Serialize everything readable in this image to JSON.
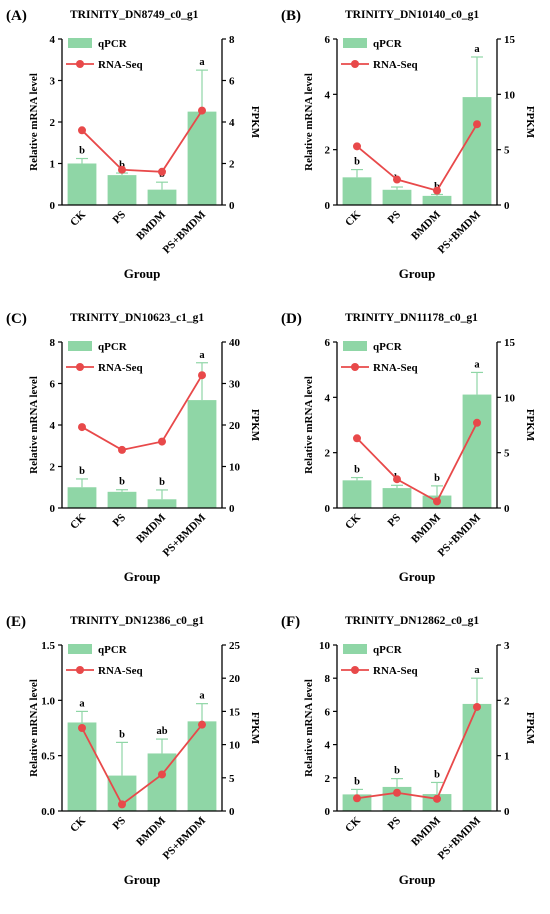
{
  "colors": {
    "bar": "#8fd6a6",
    "error": "#8fd6a6",
    "line": "#e8494a",
    "axis": "#000000"
  },
  "chart_data": [
    {
      "type": "bar",
      "panel_label": "(A)",
      "title": "TRINITY_DN8749_c0_g1",
      "xlabel": "Group",
      "ylabel": "Relative mRNA level",
      "y2label": "FPKM",
      "categories": [
        "CK",
        "PS",
        "BMDM",
        "PS+BMDM"
      ],
      "ylim": [
        0,
        4
      ],
      "yticks": [
        "0",
        "1",
        "2",
        "3",
        "4"
      ],
      "y2lim": [
        0,
        8
      ],
      "y2ticks": [
        "0",
        "2",
        "4",
        "6",
        "8"
      ],
      "legend": [
        "qPCR",
        "RNA-Seq"
      ],
      "series": [
        {
          "name": "qPCR",
          "type": "bar",
          "values": [
            1.0,
            0.72,
            0.37,
            2.25
          ],
          "errors": [
            0.12,
            0.05,
            0.18,
            1.0
          ],
          "labels": [
            "b",
            "b",
            "b",
            "a"
          ]
        },
        {
          "name": "RNA-Seq",
          "type": "line",
          "axis": "right",
          "values": [
            3.6,
            1.7,
            1.6,
            4.55
          ]
        }
      ]
    },
    {
      "type": "bar",
      "panel_label": "(B)",
      "title": "TRINITY_DN10140_c0_g1",
      "xlabel": "Group",
      "ylabel": "Relative mRNA level",
      "y2label": "FPKM",
      "categories": [
        "CK",
        "PS",
        "BMDM",
        "PS+BMDM"
      ],
      "ylim": [
        0,
        6
      ],
      "yticks": [
        "0",
        "2",
        "4",
        "6"
      ],
      "y2lim": [
        0,
        15
      ],
      "y2ticks": [
        "0",
        "5",
        "10",
        "15"
      ],
      "legend": [
        "qPCR",
        "RNA-Seq"
      ],
      "series": [
        {
          "name": "qPCR",
          "type": "bar",
          "values": [
            1.0,
            0.55,
            0.33,
            3.9
          ],
          "errors": [
            0.28,
            0.1,
            0.05,
            1.45
          ],
          "labels": [
            "b",
            "b",
            "b",
            "a"
          ]
        },
        {
          "name": "RNA-Seq",
          "type": "line",
          "axis": "right",
          "values": [
            5.3,
            2.3,
            1.3,
            7.3
          ]
        }
      ]
    },
    {
      "type": "bar",
      "panel_label": "(C)",
      "title": "TRINITY_DN10623_c1_g1",
      "xlabel": "Group",
      "ylabel": "Relative mRNA level",
      "y2label": "FPKM",
      "categories": [
        "CK",
        "PS",
        "BMDM",
        "PS+BMDM"
      ],
      "ylim": [
        0,
        8
      ],
      "yticks": [
        "0",
        "2",
        "4",
        "6",
        "8"
      ],
      "y2lim": [
        0,
        40
      ],
      "y2ticks": [
        "0",
        "10",
        "20",
        "30",
        "40"
      ],
      "legend": [
        "qPCR",
        "RNA-Seq"
      ],
      "series": [
        {
          "name": "qPCR",
          "type": "bar",
          "values": [
            1.0,
            0.78,
            0.42,
            5.2
          ],
          "errors": [
            0.4,
            0.1,
            0.45,
            1.8
          ],
          "labels": [
            "b",
            "b",
            "b",
            "a"
          ]
        },
        {
          "name": "RNA-Seq",
          "type": "line",
          "axis": "right",
          "values": [
            19.5,
            14.0,
            16.0,
            32.0
          ]
        }
      ]
    },
    {
      "type": "bar",
      "panel_label": "(D)",
      "title": "TRINITY_DN11178_c0_g1",
      "xlabel": "Group",
      "ylabel": "Relative mRNA level",
      "y2label": "FPKM",
      "categories": [
        "CK",
        "PS",
        "BMDM",
        "PS+BMDM"
      ],
      "ylim": [
        0,
        6
      ],
      "yticks": [
        "0",
        "2",
        "4",
        "6"
      ],
      "y2lim": [
        0,
        15
      ],
      "y2ticks": [
        "0",
        "5",
        "10",
        "15"
      ],
      "legend": [
        "qPCR",
        "RNA-Seq"
      ],
      "series": [
        {
          "name": "qPCR",
          "type": "bar",
          "values": [
            1.0,
            0.72,
            0.45,
            4.1
          ],
          "errors": [
            0.1,
            0.1,
            0.35,
            0.8
          ],
          "labels": [
            "b",
            "b",
            "b",
            "a"
          ]
        },
        {
          "name": "RNA-Seq",
          "type": "line",
          "axis": "right",
          "values": [
            6.3,
            2.6,
            0.6,
            7.7
          ]
        }
      ]
    },
    {
      "type": "bar",
      "panel_label": "(E)",
      "title": "TRINITY_DN12386_c0_g1",
      "xlabel": "Group",
      "ylabel": "Relative mRNA level",
      "y2label": "FPKM",
      "categories": [
        "CK",
        "PS",
        "BMDM",
        "PS+BMDM"
      ],
      "ylim": [
        0,
        1.5
      ],
      "yticks": [
        "0.0",
        "0.5",
        "1.0",
        "1.5"
      ],
      "y2lim": [
        0,
        25
      ],
      "y2ticks": [
        "0",
        "5",
        "10",
        "15",
        "20",
        "25"
      ],
      "legend": [
        "qPCR",
        "RNA-Seq"
      ],
      "series": [
        {
          "name": "qPCR",
          "type": "bar",
          "values": [
            0.8,
            0.32,
            0.52,
            0.81
          ],
          "errors": [
            0.1,
            0.3,
            0.13,
            0.16
          ],
          "labels": [
            "a",
            "b",
            "ab",
            "a"
          ]
        },
        {
          "name": "RNA-Seq",
          "type": "line",
          "axis": "right",
          "values": [
            12.5,
            1.0,
            5.5,
            13.0
          ]
        }
      ]
    },
    {
      "type": "bar",
      "panel_label": "(F)",
      "title": "TRINITY_DN12862_c0_g1",
      "xlabel": "Group",
      "ylabel": "Relative mRNA level",
      "y2label": "FPKM",
      "categories": [
        "CK",
        "PS",
        "BMDM",
        "PS+BMDM"
      ],
      "ylim": [
        0,
        10
      ],
      "yticks": [
        "0",
        "2",
        "4",
        "6",
        "8",
        "10"
      ],
      "y2lim": [
        0,
        3
      ],
      "y2ticks": [
        "0",
        "1",
        "2",
        "3"
      ],
      "legend": [
        "qPCR",
        "RNA-Seq"
      ],
      "series": [
        {
          "name": "qPCR",
          "type": "bar",
          "values": [
            1.0,
            1.45,
            1.02,
            6.45
          ],
          "errors": [
            0.3,
            0.5,
            0.7,
            1.55
          ],
          "labels": [
            "b",
            "b",
            "b",
            "a"
          ]
        },
        {
          "name": "RNA-Seq",
          "type": "line",
          "axis": "right",
          "values": [
            0.23,
            0.33,
            0.22,
            1.88
          ]
        }
      ]
    }
  ]
}
